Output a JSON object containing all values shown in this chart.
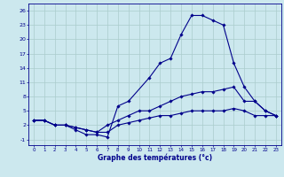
{
  "title": "Graphe des températures (°c)",
  "bg_color": "#cce8ee",
  "grid_color": "#aacccc",
  "line_color": "#00008b",
  "x_ticks": [
    0,
    1,
    2,
    3,
    4,
    5,
    6,
    7,
    8,
    9,
    10,
    11,
    12,
    13,
    14,
    15,
    16,
    17,
    18,
    19,
    20,
    21,
    22,
    23
  ],
  "y_ticks": [
    -1,
    2,
    5,
    8,
    11,
    14,
    17,
    20,
    23,
    26
  ],
  "xlim": [
    -0.5,
    23.5
  ],
  "ylim": [
    -2.2,
    27.5
  ],
  "c1x": [
    0,
    1,
    2,
    3,
    4,
    5,
    6,
    7,
    8,
    9,
    11,
    12,
    13,
    14,
    15,
    16,
    17,
    18,
    19,
    20,
    21,
    22,
    23
  ],
  "c1y": [
    3,
    3,
    2,
    2,
    1,
    0,
    0,
    -0.5,
    6,
    7,
    12,
    15,
    16,
    21,
    25,
    25,
    24,
    23,
    15,
    10,
    7,
    5,
    4
  ],
  "c2x": [
    0,
    1,
    2,
    3,
    4,
    5,
    6,
    7,
    8,
    9,
    10,
    11,
    12,
    13,
    14,
    15,
    16,
    17,
    18,
    19,
    20,
    21,
    22,
    23
  ],
  "c2y": [
    3,
    3,
    2,
    2,
    1.5,
    1,
    0.5,
    2,
    3,
    4,
    5,
    5,
    6,
    7,
    8,
    8.5,
    9,
    9,
    9.5,
    10,
    7,
    7,
    5,
    4
  ],
  "c3x": [
    0,
    1,
    2,
    3,
    4,
    5,
    6,
    7,
    8,
    9,
    10,
    11,
    12,
    13,
    14,
    15,
    16,
    17,
    18,
    19,
    20,
    21,
    22,
    23
  ],
  "c3y": [
    3,
    3,
    2,
    2,
    1.5,
    1,
    0.5,
    0.5,
    2,
    2.5,
    3,
    3.5,
    4,
    4,
    4.5,
    5,
    5,
    5,
    5,
    5.5,
    5,
    4,
    4,
    4
  ],
  "marker_size": 1.8,
  "line_width": 0.8,
  "tick_fontsize": 4.0,
  "xlabel_fontsize": 5.5
}
